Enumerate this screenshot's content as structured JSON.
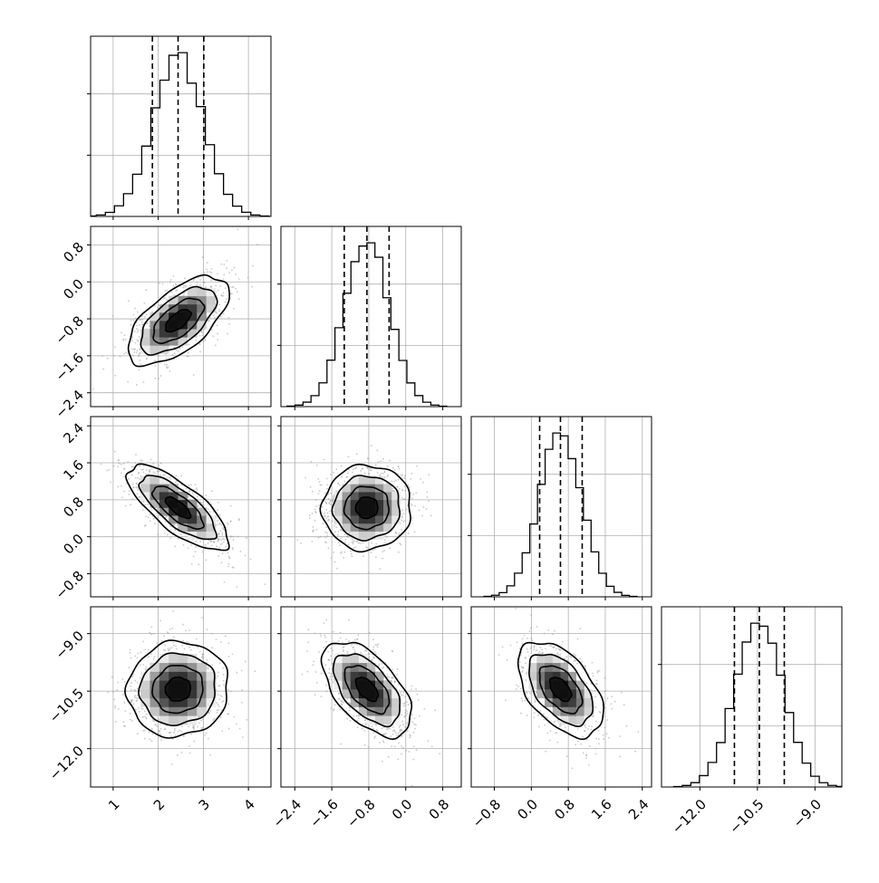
{
  "chart_data": {
    "type": "corner",
    "parameters": [
      {
        "index": 0,
        "range": [
          0.5,
          4.5
        ],
        "ticks": [
          1,
          2,
          3,
          4
        ],
        "tick_labels": [
          "1",
          "2",
          "3",
          "4"
        ],
        "quantiles": [
          1.87,
          2.44,
          3.01
        ],
        "center": 2.44,
        "sigma": 0.56
      },
      {
        "index": 1,
        "range": [
          -2.7,
          1.2
        ],
        "ticks": [
          -2.4,
          -1.6,
          -0.8,
          0.0,
          0.8
        ],
        "tick_labels": [
          "−2.4",
          "−1.6",
          "−0.8",
          "0.0",
          "0.8"
        ],
        "quantiles": [
          -1.33,
          -0.84,
          -0.36
        ],
        "center": -0.84,
        "sigma": 0.48
      },
      {
        "index": 2,
        "range": [
          -1.3,
          2.6
        ],
        "ticks": [
          -0.8,
          0.0,
          0.8,
          1.6,
          2.4
        ],
        "tick_labels": [
          "−0.8",
          "0.0",
          "0.8",
          "1.6",
          "2.4"
        ],
        "quantiles": [
          0.18,
          0.63,
          1.1
        ],
        "center": 0.63,
        "sigma": 0.46
      },
      {
        "index": 3,
        "range": [
          -13.0,
          -8.3
        ],
        "ticks": [
          -12.0,
          -10.5,
          -9.0
        ],
        "tick_labels": [
          "−12.0",
          "−10.5",
          "−9.0"
        ],
        "quantiles": [
          -11.1,
          -10.45,
          -9.8
        ],
        "center": -10.45,
        "sigma": 0.62
      }
    ],
    "correlations": [
      {
        "pair": [
          1,
          0
        ],
        "rho": 0.62
      },
      {
        "pair": [
          2,
          0
        ],
        "rho": -0.75
      },
      {
        "pair": [
          2,
          1
        ],
        "rho": 0.02
      },
      {
        "pair": [
          3,
          0
        ],
        "rho": 0.05
      },
      {
        "pair": [
          3,
          1
        ],
        "rho": -0.55
      },
      {
        "pair": [
          3,
          2
        ],
        "rho": -0.5
      }
    ],
    "histogram_bins": 20,
    "scatter_samples": 900,
    "contour_levels": [
      0.5,
      1.0,
      1.5,
      2.0
    ],
    "grid": true,
    "colors": {
      "line": "#000000",
      "points": "#9a9a9a",
      "grid": "#b0b0b0",
      "axes": "#000000"
    }
  }
}
